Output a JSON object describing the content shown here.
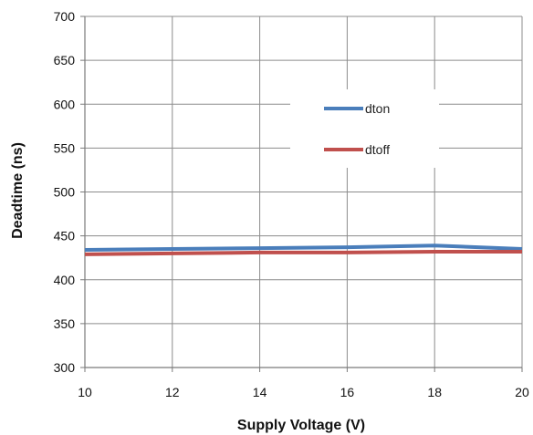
{
  "chart_data": {
    "type": "line",
    "title": "",
    "xlabel": "Supply Voltage (V)",
    "ylabel": "Deadtime (ns)",
    "xlim": [
      10,
      20
    ],
    "ylim": [
      300,
      700
    ],
    "xticks": [
      10,
      12,
      14,
      16,
      18,
      20
    ],
    "yticks": [
      300,
      350,
      400,
      450,
      500,
      550,
      600,
      650,
      700
    ],
    "grid": true,
    "legend_position": "upper-right",
    "series": [
      {
        "name": "dton",
        "color": "#4a7ebb",
        "x": [
          10,
          12,
          14,
          16,
          18,
          20
        ],
        "y": [
          434,
          435,
          436,
          437,
          439,
          435
        ]
      },
      {
        "name": "dtoff",
        "color": "#c0504d",
        "x": [
          10,
          12,
          14,
          16,
          18,
          20
        ],
        "y": [
          429,
          430,
          431,
          431,
          432,
          432
        ]
      }
    ]
  }
}
